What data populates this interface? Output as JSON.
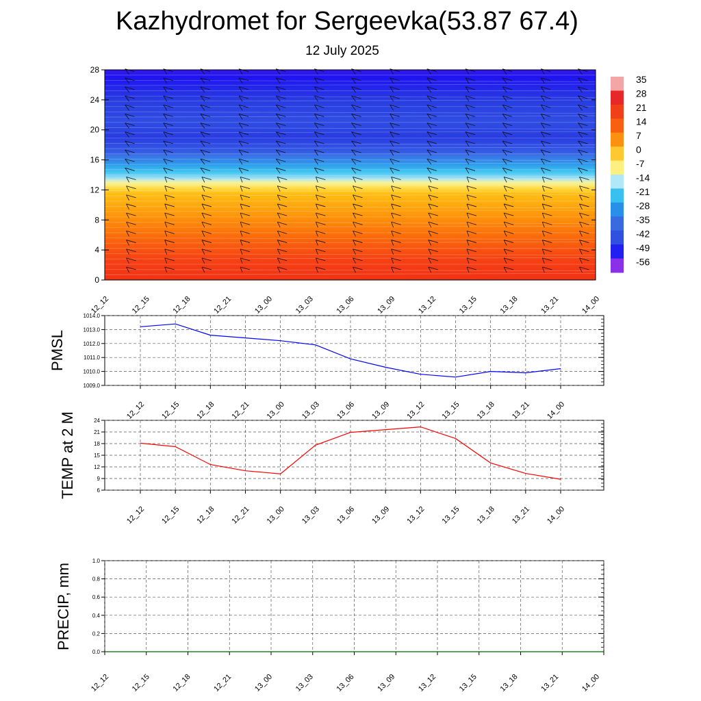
{
  "title": "Kazhydromet for Sergeevka(53.87 67.4)",
  "subtitle": "12 July 2025",
  "time_labels": [
    "12_12",
    "12_15",
    "12_18",
    "12_21",
    "13_00",
    "13_03",
    "13_06",
    "13_09",
    "13_12",
    "13_15",
    "13_18",
    "13_21",
    "14_00"
  ],
  "colorbar": {
    "labels": [
      "35",
      "28",
      "21",
      "14",
      "7",
      "0",
      "-7",
      "-14",
      "-21",
      "-28",
      "-35",
      "-42",
      "-49",
      "-56"
    ],
    "colors": [
      "#f4a6a6",
      "#e82828",
      "#f04018",
      "#f86010",
      "#fc9010",
      "#fdc830",
      "#fdf080",
      "#b0e8f8",
      "#38c0f0",
      "#2890e8",
      "#3a6ae0",
      "#3050e0",
      "#2020f0",
      "#8a30e8"
    ]
  },
  "chart_data": [
    {
      "type": "heatmap",
      "ylabel": "",
      "yticks": [
        "0",
        "4",
        "8",
        "12",
        "16",
        "20",
        "24",
        "28"
      ],
      "ylim": [
        0,
        28
      ],
      "x": [
        "12_12",
        "12_15",
        "12_18",
        "12_21",
        "13_00",
        "13_03",
        "13_06",
        "13_09",
        "13_12",
        "13_15",
        "13_18",
        "13_21",
        "14_00"
      ],
      "levels_y": [
        0,
        3,
        6,
        9,
        11.5,
        12.5,
        14,
        15.5,
        17,
        19,
        21,
        24,
        26,
        28
      ],
      "level_temps_c": [
        20,
        17,
        12,
        6,
        0,
        -8,
        -22,
        -32,
        -42,
        -46,
        -44,
        -46,
        -50,
        -54
      ],
      "wind_barbs": "yes"
    },
    {
      "type": "line",
      "ylabel": "PMSL",
      "x": [
        "12_12",
        "12_15",
        "12_18",
        "12_21",
        "13_00",
        "13_03",
        "13_06",
        "13_09",
        "13_12",
        "13_15",
        "13_18",
        "13_21",
        "14_00"
      ],
      "series": [
        {
          "values": [
            1013.2,
            1013.4,
            1012.6,
            1012.4,
            1012.2,
            1011.9,
            1010.9,
            1010.3,
            1009.8,
            1009.6,
            1010.0,
            1009.9,
            1010.2
          ],
          "color": "#0000ff"
        }
      ],
      "ylim": [
        1009.0,
        1014.0
      ],
      "yticks": [
        "1009.0",
        "1010.0",
        "1011.0",
        "1012.0",
        "1013.0",
        "1014.0"
      ],
      "grid": "dashed"
    },
    {
      "type": "line",
      "ylabel": "TEMP at 2 M",
      "x": [
        "12_12",
        "12_15",
        "12_18",
        "12_21",
        "13_00",
        "13_03",
        "13_06",
        "13_09",
        "13_12",
        "13_15",
        "13_18",
        "13_21",
        "14_00"
      ],
      "series": [
        {
          "values": [
            18.1,
            17.2,
            12.6,
            11.0,
            10.2,
            17.6,
            20.9,
            21.6,
            22.3,
            19.3,
            13.0,
            10.3,
            8.8
          ],
          "color": "#ff0000"
        }
      ],
      "ylim": [
        6,
        24
      ],
      "yticks": [
        "6",
        "9",
        "12",
        "15",
        "18",
        "21",
        "24"
      ],
      "grid": "dashed"
    },
    {
      "type": "line",
      "ylabel": "PRECIP, mm",
      "x": [
        "12_12",
        "12_15",
        "12_18",
        "12_21",
        "13_00",
        "13_03",
        "13_06",
        "13_09",
        "13_12",
        "13_15",
        "13_18",
        "13_21",
        "14_00"
      ],
      "series": [
        {
          "values": [
            0,
            0,
            0,
            0,
            0,
            0,
            0,
            0,
            0,
            0,
            0,
            0,
            0
          ],
          "color": "#006400"
        }
      ],
      "ylim": [
        0.0,
        1.0
      ],
      "yticks": [
        "0.0",
        "0.2",
        "0.4",
        "0.6",
        "0.8",
        "1.0"
      ],
      "grid": "dashed"
    }
  ]
}
